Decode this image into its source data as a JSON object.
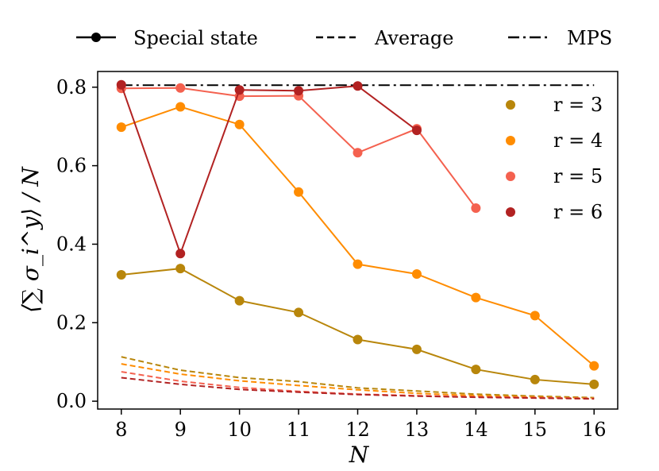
{
  "chart_data": {
    "type": "line",
    "xlabel": "N",
    "ylabel": "⟨∑ σ_i^y⟩ / N",
    "xlim": [
      7.6,
      16.4
    ],
    "ylim": [
      -0.02,
      0.84
    ],
    "x_ticks": [
      8,
      9,
      10,
      11,
      12,
      13,
      14,
      15,
      16
    ],
    "y_ticks": [
      0.0,
      0.2,
      0.4,
      0.6,
      0.8
    ],
    "y_tick_labels": [
      "0.0",
      "0.2",
      "0.4",
      "0.6",
      "0.8"
    ],
    "x_tick_labels": [
      "8",
      "9",
      "10",
      "11",
      "12",
      "13",
      "14",
      "15",
      "16"
    ],
    "top_legend": [
      {
        "key": "special",
        "label": "Special state",
        "style": "solid-marker"
      },
      {
        "key": "average",
        "label": "Average",
        "style": "dashed"
      },
      {
        "key": "mps",
        "label": "MPS",
        "style": "dashdot"
      }
    ],
    "series_legend": [
      {
        "name": "r = 3",
        "color": "#b8860b"
      },
      {
        "name": "r = 4",
        "color": "#ff8c00"
      },
      {
        "name": "r = 5",
        "color": "#f4614f"
      },
      {
        "name": "r = 6",
        "color": "#b22222"
      }
    ],
    "mps_line": {
      "x": [
        8,
        16
      ],
      "y": [
        0.805,
        0.805
      ],
      "color": "#000000"
    },
    "special_series": [
      {
        "name": "r = 3",
        "color": "#b8860b",
        "x": [
          8,
          9,
          10,
          11,
          12,
          13,
          14,
          15,
          16
        ],
        "y": [
          0.322,
          0.338,
          0.256,
          0.226,
          0.157,
          0.132,
          0.081,
          0.055,
          0.043
        ]
      },
      {
        "name": "r = 4",
        "color": "#ff8c00",
        "x": [
          8,
          9,
          10,
          11,
          12,
          13,
          14,
          15,
          16
        ],
        "y": [
          0.698,
          0.75,
          0.705,
          0.533,
          0.349,
          0.324,
          0.264,
          0.218,
          0.09
        ]
      },
      {
        "name": "r = 5",
        "color": "#f4614f",
        "x": [
          8,
          9,
          10,
          11,
          12,
          13,
          14
        ],
        "y": [
          0.797,
          0.798,
          0.777,
          0.778,
          0.633,
          0.694,
          0.492
        ]
      },
      {
        "name": "r = 6",
        "color": "#b22222",
        "x": [
          8,
          9,
          10,
          11,
          12,
          13
        ],
        "y": [
          0.806,
          0.376,
          0.793,
          0.791,
          0.803,
          0.69
        ]
      }
    ],
    "average_series": [
      {
        "name": "r = 3",
        "color": "#b8860b",
        "x": [
          8,
          9,
          10,
          11,
          12,
          13,
          14,
          15,
          16
        ],
        "y": [
          0.113,
          0.079,
          0.06,
          0.05,
          0.034,
          0.026,
          0.018,
          0.013,
          0.009
        ]
      },
      {
        "name": "r = 4",
        "color": "#ff8c00",
        "x": [
          8,
          9,
          10,
          11,
          12,
          13,
          14,
          15,
          16
        ],
        "y": [
          0.095,
          0.069,
          0.052,
          0.04,
          0.029,
          0.02,
          0.014,
          0.01,
          0.007
        ]
      },
      {
        "name": "r = 5",
        "color": "#f4614f",
        "x": [
          8,
          9,
          10,
          11,
          12,
          13,
          14,
          15,
          16
        ],
        "y": [
          0.075,
          0.051,
          0.035,
          0.025,
          0.018,
          0.014,
          0.011,
          0.009,
          0.007
        ]
      },
      {
        "name": "r = 6",
        "color": "#b22222",
        "x": [
          8,
          9,
          10,
          11,
          12,
          13,
          14,
          15,
          16
        ],
        "y": [
          0.06,
          0.043,
          0.03,
          0.023,
          0.017,
          0.013,
          0.01,
          0.008,
          0.006
        ]
      }
    ]
  }
}
